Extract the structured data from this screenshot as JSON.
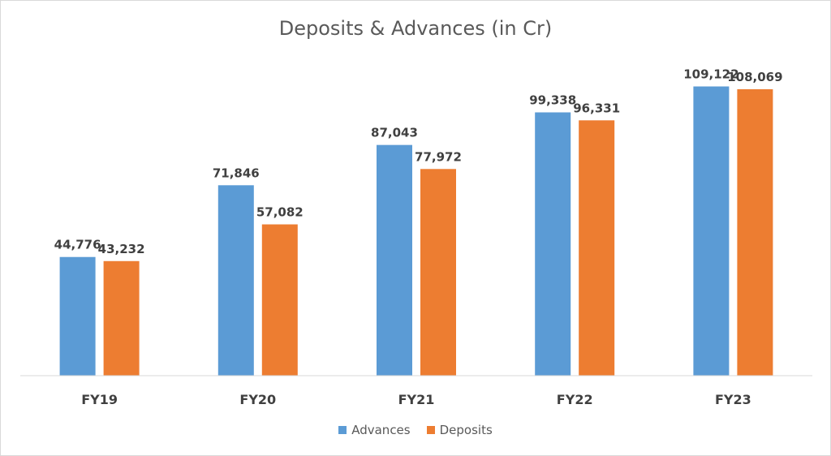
{
  "chart_data": {
    "type": "bar",
    "title": "Deposits & Advances (in Cr)",
    "categories": [
      "FY19",
      "FY20",
      "FY21",
      "FY22",
      "FY23"
    ],
    "series": [
      {
        "name": "Advances",
        "color": "#5b9bd5",
        "values": [
          44776,
          71846,
          87043,
          99338,
          109122
        ],
        "labels": [
          "44,776",
          "71,846",
          "87,043",
          "99,338",
          "109,122"
        ]
      },
      {
        "name": "Deposits",
        "color": "#ed7d31",
        "values": [
          43232,
          57082,
          77972,
          96331,
          108069
        ],
        "labels": [
          "43,232",
          "57,082",
          "77,972",
          "96,331",
          "108,069"
        ]
      }
    ],
    "xlabel": "",
    "ylabel": "",
    "ylim": [
      0,
      120000
    ],
    "grid": false,
    "legend": "bottom"
  }
}
